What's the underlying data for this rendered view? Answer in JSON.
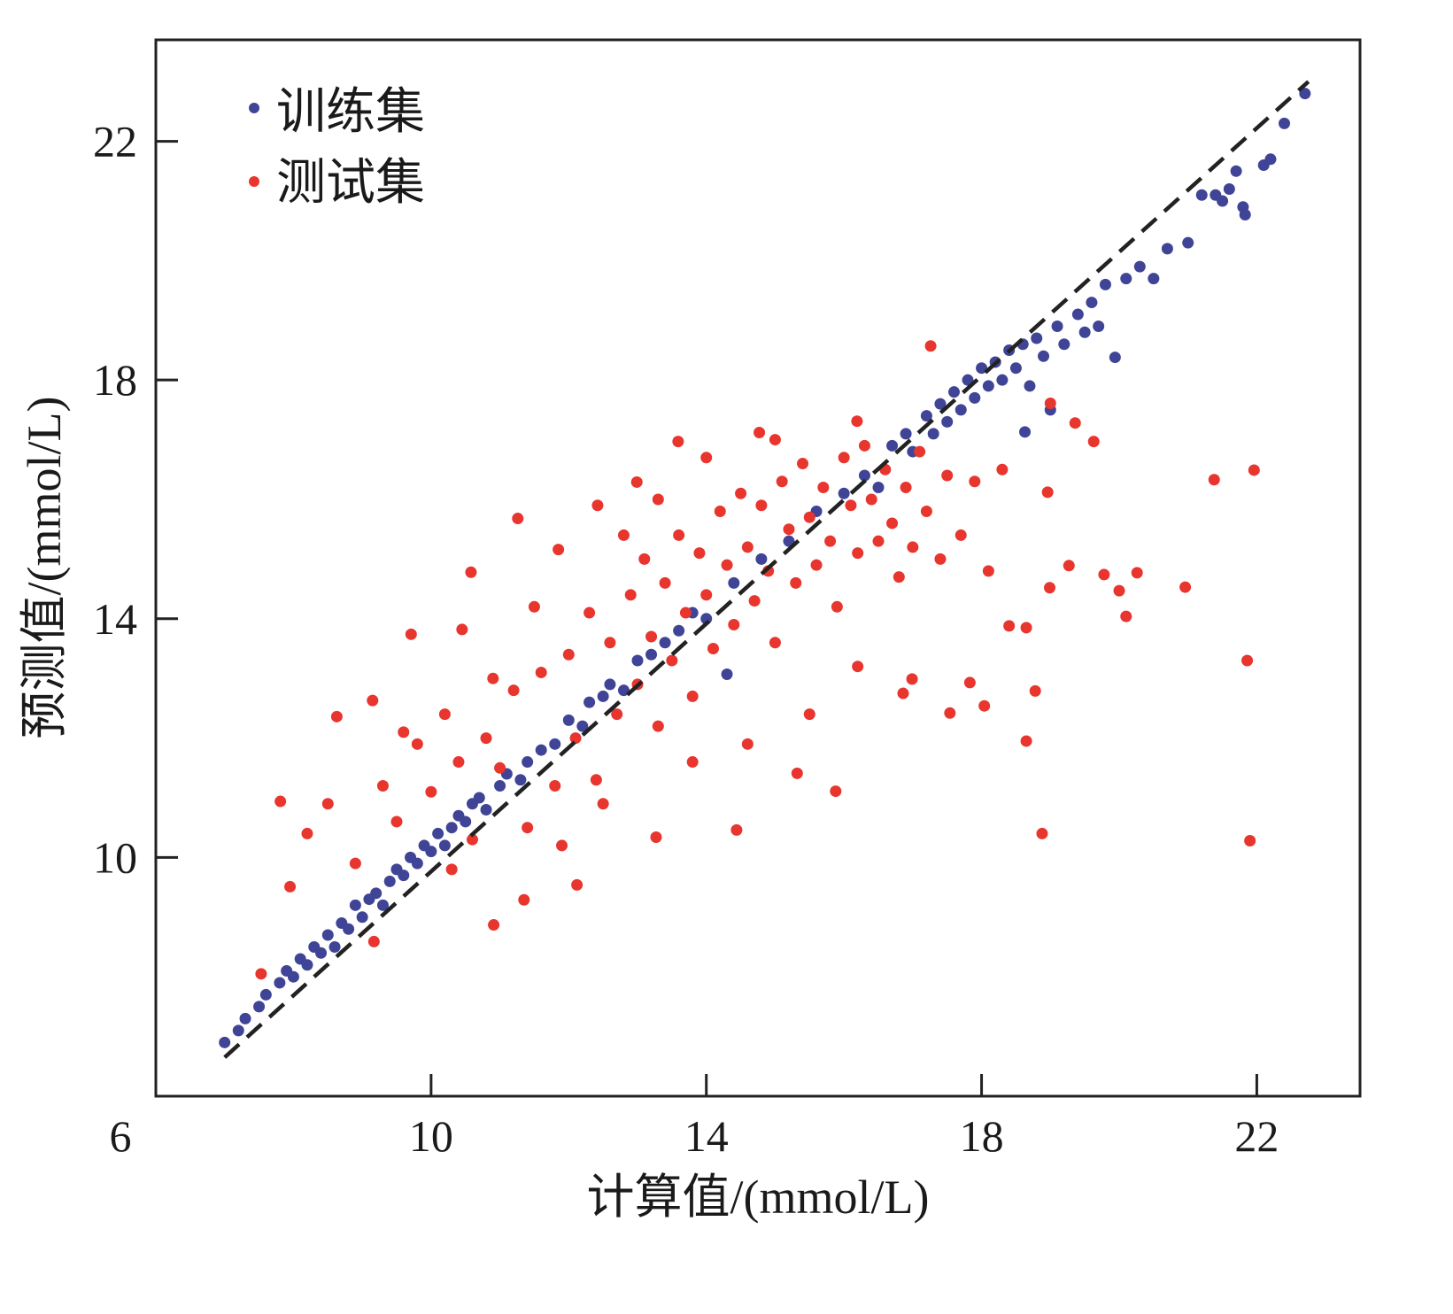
{
  "chart_data": {
    "type": "scatter",
    "title": "",
    "xlabel": "计算值/(mmol/L)",
    "ylabel": "预测值/(mmol/L)",
    "xlim": [
      6,
      23.5
    ],
    "ylim": [
      6,
      23.7
    ],
    "xticks": [
      6,
      10,
      14,
      18,
      22
    ],
    "xtick_labels": [
      "6",
      "10",
      "14",
      "18",
      "22"
    ],
    "yticks": [
      10,
      14,
      18,
      22
    ],
    "ytick_labels": [
      "10",
      "14",
      "18",
      "22"
    ],
    "grid": false,
    "legend": {
      "placement": "top-left",
      "entries": [
        "训练集",
        "测试集"
      ]
    },
    "reference_line": {
      "style": "dashed",
      "color": "#222222",
      "points": [
        [
          7.0,
          6.65
        ],
        [
          22.75,
          23.0
        ]
      ]
    },
    "series": [
      {
        "name": "训练集",
        "color": "#3f4496",
        "points": [
          [
            7.0,
            6.9
          ],
          [
            7.2,
            7.1
          ],
          [
            7.3,
            7.3
          ],
          [
            7.5,
            7.5
          ],
          [
            7.6,
            7.7
          ],
          [
            7.8,
            7.9
          ],
          [
            7.9,
            8.1
          ],
          [
            8.0,
            8.0
          ],
          [
            8.1,
            8.3
          ],
          [
            8.2,
            8.2
          ],
          [
            8.3,
            8.5
          ],
          [
            8.4,
            8.4
          ],
          [
            8.5,
            8.7
          ],
          [
            8.6,
            8.5
          ],
          [
            8.7,
            8.9
          ],
          [
            8.8,
            8.8
          ],
          [
            8.9,
            9.2
          ],
          [
            9.0,
            9.0
          ],
          [
            9.1,
            9.3
          ],
          [
            9.2,
            9.4
          ],
          [
            9.3,
            9.2
          ],
          [
            9.4,
            9.6
          ],
          [
            9.5,
            9.8
          ],
          [
            9.6,
            9.7
          ],
          [
            9.7,
            10.0
          ],
          [
            9.8,
            9.9
          ],
          [
            9.9,
            10.2
          ],
          [
            10.0,
            10.1
          ],
          [
            10.1,
            10.4
          ],
          [
            10.2,
            10.2
          ],
          [
            10.3,
            10.5
          ],
          [
            10.4,
            10.7
          ],
          [
            10.5,
            10.6
          ],
          [
            10.6,
            10.9
          ],
          [
            10.7,
            11.0
          ],
          [
            10.8,
            10.8
          ],
          [
            11.0,
            11.2
          ],
          [
            11.1,
            11.4
          ],
          [
            11.3,
            11.3
          ],
          [
            11.4,
            11.6
          ],
          [
            11.6,
            11.8
          ],
          [
            11.8,
            11.9
          ],
          [
            12.0,
            12.3
          ],
          [
            12.2,
            12.2
          ],
          [
            12.3,
            12.6
          ],
          [
            12.5,
            12.7
          ],
          [
            12.6,
            12.9
          ],
          [
            12.8,
            12.8
          ],
          [
            13.0,
            13.3
          ],
          [
            13.2,
            13.4
          ],
          [
            13.4,
            13.6
          ],
          [
            13.6,
            13.8
          ],
          [
            13.8,
            14.1
          ],
          [
            14.0,
            14.0
          ],
          [
            14.3,
            13.07
          ],
          [
            14.4,
            14.6
          ],
          [
            14.8,
            15.0
          ],
          [
            15.2,
            15.3
          ],
          [
            15.6,
            15.8
          ],
          [
            16.0,
            16.1
          ],
          [
            16.3,
            16.4
          ],
          [
            16.5,
            16.2
          ],
          [
            16.7,
            16.9
          ],
          [
            16.9,
            17.1
          ],
          [
            17.0,
            16.8
          ],
          [
            17.2,
            17.4
          ],
          [
            17.3,
            17.1
          ],
          [
            17.4,
            17.6
          ],
          [
            17.5,
            17.3
          ],
          [
            17.6,
            17.8
          ],
          [
            17.7,
            17.5
          ],
          [
            17.8,
            18.0
          ],
          [
            17.9,
            17.7
          ],
          [
            18.0,
            18.2
          ],
          [
            18.1,
            17.9
          ],
          [
            18.2,
            18.3
          ],
          [
            18.3,
            18.0
          ],
          [
            18.4,
            18.5
          ],
          [
            18.5,
            18.2
          ],
          [
            18.6,
            18.6
          ],
          [
            18.63,
            17.13
          ],
          [
            18.7,
            17.9
          ],
          [
            18.8,
            18.7
          ],
          [
            18.9,
            18.4
          ],
          [
            19.0,
            17.5
          ],
          [
            19.1,
            18.9
          ],
          [
            19.2,
            18.6
          ],
          [
            19.4,
            19.1
          ],
          [
            19.5,
            18.8
          ],
          [
            19.6,
            19.3
          ],
          [
            19.7,
            18.9
          ],
          [
            19.8,
            19.6
          ],
          [
            19.94,
            18.38
          ],
          [
            20.1,
            19.7
          ],
          [
            20.3,
            19.9
          ],
          [
            20.5,
            19.7
          ],
          [
            20.7,
            20.2
          ],
          [
            21.0,
            20.3
          ],
          [
            21.2,
            21.1
          ],
          [
            21.4,
            21.1
          ],
          [
            21.5,
            21.0
          ],
          [
            21.6,
            21.2
          ],
          [
            21.7,
            21.5
          ],
          [
            21.8,
            20.9
          ],
          [
            21.83,
            20.77
          ],
          [
            22.1,
            21.6
          ],
          [
            22.2,
            21.7
          ],
          [
            22.4,
            22.3
          ],
          [
            22.7,
            22.8
          ]
        ]
      },
      {
        "name": "测试集",
        "color": "#e8352e",
        "points": [
          [
            21.96,
            16.49
          ],
          [
            21.38,
            16.33
          ],
          [
            20.96,
            14.53
          ],
          [
            21.86,
            13.3
          ],
          [
            21.9,
            10.28
          ],
          [
            18.88,
            10.4
          ],
          [
            20.26,
            14.77
          ],
          [
            20.1,
            14.04
          ],
          [
            20.0,
            14.47
          ],
          [
            19.78,
            14.74
          ],
          [
            19.27,
            14.89
          ],
          [
            18.99,
            14.52
          ],
          [
            19.36,
            17.28
          ],
          [
            19.63,
            16.97
          ],
          [
            19.0,
            17.61
          ],
          [
            18.96,
            16.12
          ],
          [
            18.65,
            11.95
          ],
          [
            18.78,
            12.79
          ],
          [
            18.4,
            13.88
          ],
          [
            18.65,
            13.85
          ],
          [
            18.04,
            12.54
          ],
          [
            17.83,
            12.93
          ],
          [
            17.54,
            12.42
          ],
          [
            16.99,
            12.99
          ],
          [
            16.86,
            12.75
          ],
          [
            17.26,
            18.57
          ],
          [
            15.88,
            11.11
          ],
          [
            15.32,
            11.41
          ],
          [
            14.44,
            10.46
          ],
          [
            13.27,
            10.34
          ],
          [
            12.12,
            9.54
          ],
          [
            10.91,
            8.87
          ],
          [
            11.35,
            9.29
          ],
          [
            9.17,
            8.59
          ],
          [
            8.63,
            12.36
          ],
          [
            7.81,
            10.94
          ],
          [
            7.53,
            8.05
          ],
          [
            7.95,
            9.51
          ],
          [
            9.71,
            13.74
          ],
          [
            10.58,
            14.78
          ],
          [
            11.26,
            15.68
          ],
          [
            12.99,
            16.29
          ],
          [
            13.59,
            16.97
          ],
          [
            14.77,
            17.12
          ],
          [
            16.19,
            17.31
          ],
          [
            12.42,
            15.9
          ],
          [
            11.85,
            15.16
          ],
          [
            10.45,
            13.82
          ],
          [
            9.15,
            12.63
          ],
          [
            8.2,
            10.4
          ],
          [
            8.5,
            10.9
          ],
          [
            8.9,
            9.9
          ],
          [
            9.3,
            11.2
          ],
          [
            9.5,
            10.6
          ],
          [
            9.8,
            11.9
          ],
          [
            10.0,
            11.1
          ],
          [
            10.2,
            12.4
          ],
          [
            10.4,
            11.6
          ],
          [
            10.6,
            10.3
          ],
          [
            10.8,
            12.0
          ],
          [
            11.0,
            11.5
          ],
          [
            11.2,
            12.8
          ],
          [
            11.4,
            10.5
          ],
          [
            11.6,
            13.1
          ],
          [
            11.8,
            11.2
          ],
          [
            12.0,
            13.4
          ],
          [
            12.1,
            12.0
          ],
          [
            12.3,
            14.1
          ],
          [
            12.4,
            11.3
          ],
          [
            12.6,
            13.6
          ],
          [
            12.7,
            12.4
          ],
          [
            12.9,
            14.4
          ],
          [
            13.0,
            12.9
          ],
          [
            13.1,
            15.0
          ],
          [
            13.2,
            13.7
          ],
          [
            13.3,
            12.2
          ],
          [
            13.4,
            14.6
          ],
          [
            13.5,
            13.3
          ],
          [
            13.6,
            15.4
          ],
          [
            13.7,
            14.1
          ],
          [
            13.8,
            12.7
          ],
          [
            13.9,
            15.1
          ],
          [
            14.0,
            14.4
          ],
          [
            14.1,
            13.5
          ],
          [
            14.2,
            15.8
          ],
          [
            14.3,
            14.9
          ],
          [
            14.4,
            13.9
          ],
          [
            14.5,
            16.1
          ],
          [
            14.6,
            15.2
          ],
          [
            14.7,
            14.3
          ],
          [
            14.8,
            15.9
          ],
          [
            14.9,
            14.8
          ],
          [
            15.0,
            13.6
          ],
          [
            15.1,
            16.3
          ],
          [
            15.2,
            15.5
          ],
          [
            15.3,
            14.6
          ],
          [
            15.4,
            16.6
          ],
          [
            15.5,
            15.7
          ],
          [
            15.6,
            14.9
          ],
          [
            15.7,
            16.2
          ],
          [
            15.8,
            15.3
          ],
          [
            15.9,
            14.2
          ],
          [
            16.0,
            16.7
          ],
          [
            16.1,
            15.9
          ],
          [
            16.2,
            15.1
          ],
          [
            16.3,
            16.9
          ],
          [
            16.4,
            16.0
          ],
          [
            16.5,
            15.3
          ],
          [
            16.6,
            16.5
          ],
          [
            16.7,
            15.6
          ],
          [
            16.8,
            14.7
          ],
          [
            16.9,
            16.2
          ],
          [
            17.0,
            15.2
          ],
          [
            17.1,
            16.8
          ],
          [
            17.2,
            15.8
          ],
          [
            17.4,
            15.0
          ],
          [
            17.5,
            16.4
          ],
          [
            17.7,
            15.4
          ],
          [
            17.9,
            16.3
          ],
          [
            18.1,
            14.8
          ],
          [
            18.3,
            16.5
          ],
          [
            12.8,
            15.4
          ],
          [
            13.3,
            16.0
          ],
          [
            14.0,
            16.7
          ],
          [
            15.0,
            17.0
          ],
          [
            11.5,
            14.2
          ],
          [
            10.9,
            13.0
          ],
          [
            9.6,
            12.1
          ],
          [
            12.5,
            10.9
          ],
          [
            13.8,
            11.6
          ],
          [
            14.6,
            11.9
          ],
          [
            15.5,
            12.4
          ],
          [
            16.2,
            13.2
          ],
          [
            11.9,
            10.2
          ],
          [
            10.3,
            9.8
          ]
        ]
      }
    ]
  }
}
